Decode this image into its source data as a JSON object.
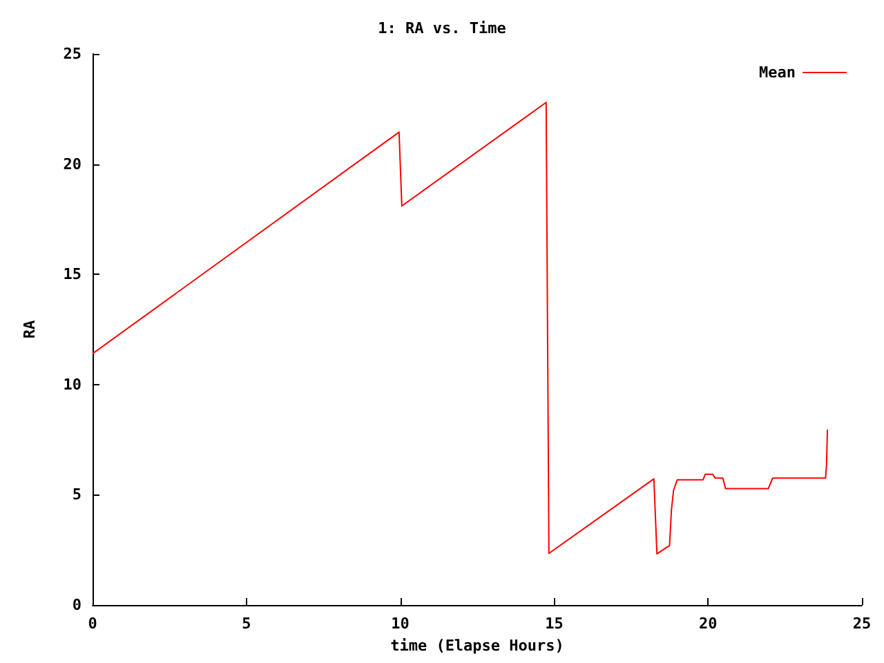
{
  "chart_data": {
    "type": "line",
    "title": "1: RA vs. Time",
    "xlabel": "time (Elapse Hours)",
    "ylabel": "RA",
    "xlim": [
      0,
      25
    ],
    "xticks": [
      0,
      5,
      10,
      15,
      20,
      25
    ],
    "ylim": [
      0,
      25
    ],
    "yticks": [
      0,
      5,
      10,
      15,
      20,
      25
    ],
    "grid": false,
    "legend": "top right",
    "marker": "none",
    "line_style": "solid",
    "series": [
      {
        "name": "Mean",
        "color": "#ff0000",
        "x": [
          0,
          9.96,
          10.05,
          14.74,
          14.83,
          18.24,
          18.34,
          18.75,
          18.81,
          18.88,
          19.0,
          19.84,
          19.91,
          20.15,
          20.23,
          20.48,
          20.57,
          21.96,
          22.1,
          23.82,
          23.85,
          23.88
        ],
        "values": [
          11.4,
          21.45,
          18.1,
          22.8,
          2.34,
          5.72,
          2.32,
          2.7,
          4.3,
          5.2,
          5.68,
          5.68,
          5.93,
          5.93,
          5.76,
          5.76,
          5.28,
          5.28,
          5.76,
          5.76,
          6.35,
          7.96
        ]
      }
    ]
  }
}
